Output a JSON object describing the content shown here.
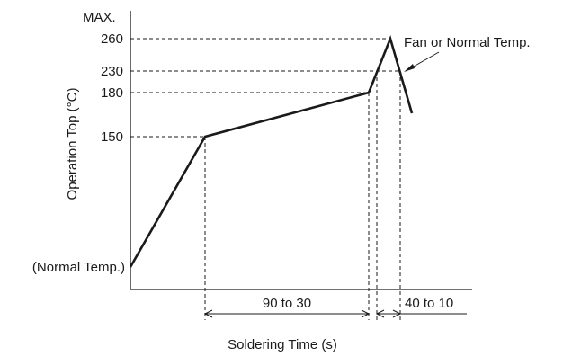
{
  "chart_data": {
    "type": "line",
    "xlabel": "Soldering Time (s)",
    "ylabel": "Operation Top (°C)",
    "y_ticks": [
      "150",
      "180",
      "230",
      "260"
    ],
    "y_axis_top_label": "MAX.",
    "start_label": "(Normal Temp.)",
    "annotation": "Fan or Normal Temp.",
    "intervals": [
      {
        "label": "90 to 30"
      },
      {
        "label": "40 to 10"
      }
    ],
    "profile": [
      {
        "stage": "start",
        "temp_c": null
      },
      {
        "stage": "preheat_end",
        "temp_c": 150
      },
      {
        "stage": "soak_end",
        "temp_c": 180
      },
      {
        "stage": "crossing_230_rising",
        "temp_c": 230
      },
      {
        "stage": "peak",
        "temp_c": 260
      },
      {
        "stage": "crossing_230_falling",
        "temp_c": 230
      },
      {
        "stage": "end",
        "temp_c": null
      }
    ],
    "grid": false,
    "legend": "none"
  }
}
